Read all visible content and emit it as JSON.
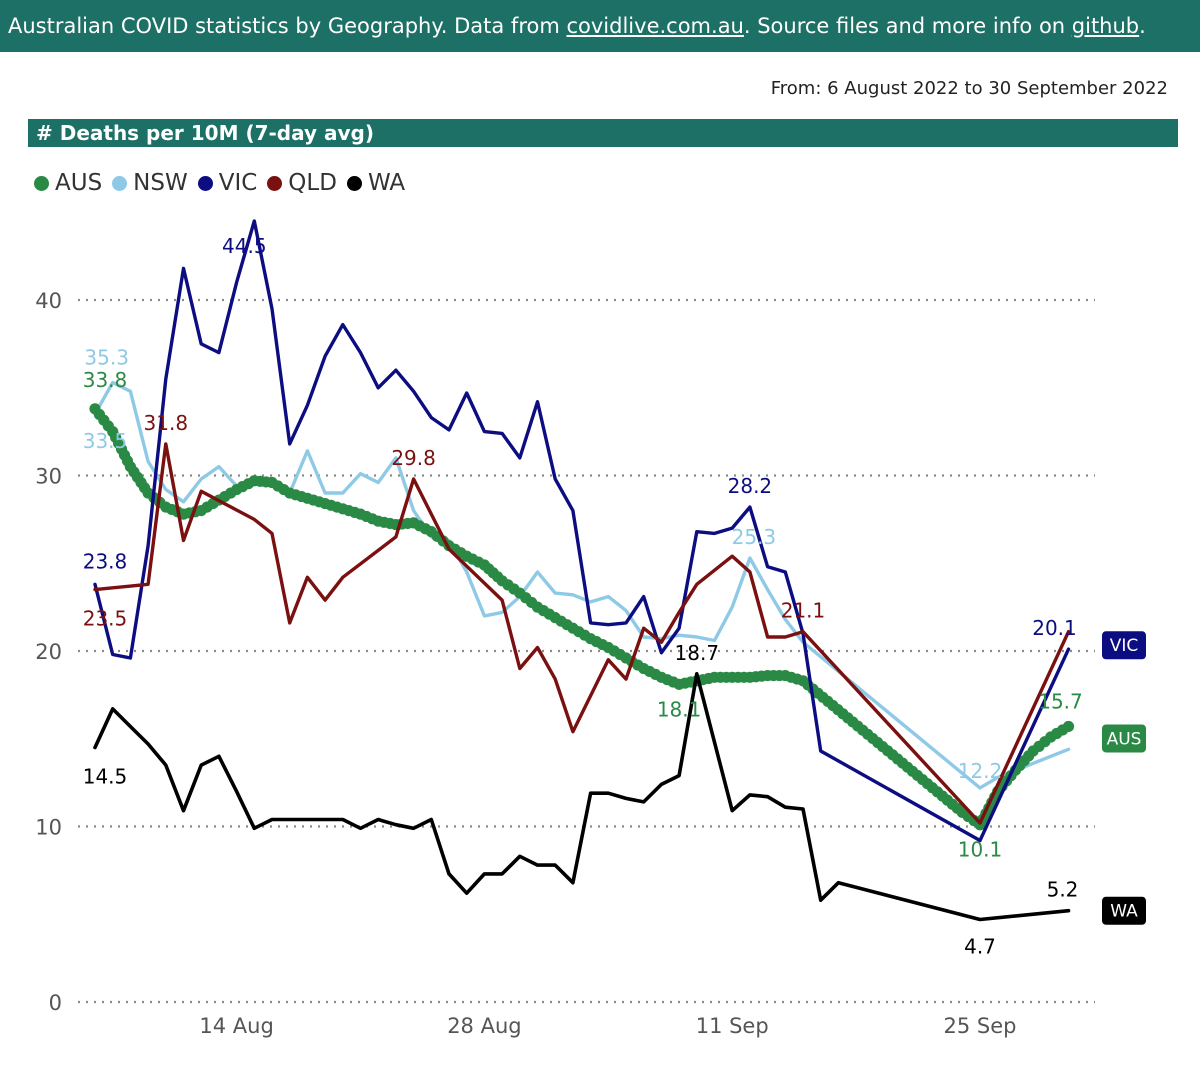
{
  "header": {
    "text_before": "Australian COVID statistics by Geography. Data from ",
    "link1": "covidlive.com.au",
    "text_middle": ". Source files and more info on ",
    "link2": "github",
    "text_after": "."
  },
  "date_range": "From: 6 August 2022 to 30 September 2022",
  "chart_data": {
    "type": "line",
    "title": "# Deaths per 10M (7-day avg)",
    "xlabel": "",
    "ylabel": "",
    "ylim": [
      0,
      46
    ],
    "yticks": [
      0,
      10,
      20,
      30,
      40
    ],
    "xticks": [
      {
        "day": 8,
        "label": "14 Aug"
      },
      {
        "day": 22,
        "label": "28 Aug"
      },
      {
        "day": 36,
        "label": "11 Sep"
      },
      {
        "day": 50,
        "label": "25 Sep"
      }
    ],
    "grid": "horizontal-dotted",
    "legend": "top-left",
    "series": [
      {
        "name": "AUS",
        "color": "#2a8a45",
        "style": "dots",
        "points": [
          [
            0,
            33.8
          ],
          [
            1,
            32.5
          ],
          [
            2,
            30.5
          ],
          [
            3,
            29.0
          ],
          [
            4,
            28.2
          ],
          [
            5,
            27.8
          ],
          [
            6,
            28.0
          ],
          [
            7,
            28.6
          ],
          [
            8,
            29.2
          ],
          [
            9,
            29.7
          ],
          [
            10,
            29.6
          ],
          [
            11,
            29.0
          ],
          [
            12,
            28.7
          ],
          [
            13,
            28.4
          ],
          [
            14,
            28.1
          ],
          [
            15,
            27.8
          ],
          [
            16,
            27.4
          ],
          [
            17,
            27.2
          ],
          [
            18,
            27.3
          ],
          [
            19,
            26.8
          ],
          [
            20,
            26.0
          ],
          [
            21,
            25.4
          ],
          [
            22,
            24.9
          ],
          [
            23,
            24.0
          ],
          [
            24,
            23.3
          ],
          [
            25,
            22.5
          ],
          [
            26,
            21.9
          ],
          [
            27,
            21.3
          ],
          [
            28,
            20.7
          ],
          [
            29,
            20.2
          ],
          [
            30,
            19.6
          ],
          [
            31,
            19.0
          ],
          [
            32,
            18.5
          ],
          [
            33,
            18.1
          ],
          [
            34,
            18.3
          ],
          [
            35,
            18.5
          ],
          [
            36,
            18.5
          ],
          [
            37,
            18.5
          ],
          [
            38,
            18.6
          ],
          [
            39,
            18.6
          ],
          [
            40,
            18.3
          ],
          [
            49,
            10.8
          ],
          [
            50,
            10.1
          ],
          [
            51,
            12.0
          ],
          [
            52,
            13.2
          ],
          [
            53,
            14.3
          ],
          [
            54,
            15.1
          ],
          [
            55,
            15.7
          ]
        ],
        "labels": [
          {
            "day": 0,
            "value": "33.8",
            "dx": 10,
            "dy": -22
          },
          {
            "day": 33,
            "value": "18.1",
            "dx": 0,
            "dy": 32
          },
          {
            "day": 50,
            "value": "10.1",
            "dx": 0,
            "dy": 32
          },
          {
            "day": 55,
            "value": "15.7",
            "dx": -8,
            "dy": -18
          }
        ],
        "end_badge": "AUS"
      },
      {
        "name": "NSW",
        "color": "#8ecae6",
        "style": "line",
        "points": [
          [
            0,
            33.5
          ],
          [
            1,
            35.3
          ],
          [
            2,
            34.8
          ],
          [
            3,
            30.8
          ],
          [
            4,
            29.2
          ],
          [
            5,
            28.5
          ],
          [
            6,
            29.8
          ],
          [
            7,
            30.5
          ],
          [
            8,
            29.4
          ],
          [
            9,
            29.8
          ],
          [
            10,
            29.6
          ],
          [
            11,
            29.0
          ],
          [
            12,
            31.4
          ],
          [
            13,
            29.0
          ],
          [
            14,
            29.0
          ],
          [
            15,
            30.1
          ],
          [
            16,
            29.6
          ],
          [
            17,
            31.0
          ],
          [
            18,
            28.0
          ],
          [
            19,
            26.5
          ],
          [
            20,
            26.3
          ],
          [
            21,
            24.5
          ],
          [
            22,
            22.0
          ],
          [
            23,
            22.2
          ],
          [
            24,
            23.1
          ],
          [
            25,
            24.5
          ],
          [
            26,
            23.3
          ],
          [
            27,
            23.2
          ],
          [
            28,
            22.8
          ],
          [
            29,
            23.1
          ],
          [
            30,
            22.3
          ],
          [
            31,
            20.8
          ],
          [
            32,
            20.7
          ],
          [
            33,
            20.9
          ],
          [
            34,
            20.8
          ],
          [
            35,
            20.6
          ],
          [
            36,
            22.5
          ],
          [
            37,
            25.3
          ],
          [
            38,
            23.5
          ],
          [
            39,
            21.8
          ],
          [
            40,
            20.5
          ],
          [
            50,
            12.2
          ],
          [
            51,
            12.8
          ],
          [
            55,
            14.4
          ]
        ],
        "labels": [
          {
            "day": 1,
            "value": "35.3",
            "dx": -6,
            "dy": -18
          },
          {
            "day": 0,
            "value": "33.5",
            "dx": 10,
            "dy": 34
          },
          {
            "day": 37,
            "value": "25.3",
            "dx": 4,
            "dy": -14
          },
          {
            "day": 50,
            "value": "12.2",
            "dx": 0,
            "dy": -10
          }
        ]
      },
      {
        "name": "VIC",
        "color": "#0d0d82",
        "style": "line",
        "points": [
          [
            0,
            23.8
          ],
          [
            1,
            19.8
          ],
          [
            2,
            19.6
          ],
          [
            3,
            26.0
          ],
          [
            4,
            35.5
          ],
          [
            5,
            41.8
          ],
          [
            6,
            37.5
          ],
          [
            7,
            37.0
          ],
          [
            8,
            41.0
          ],
          [
            9,
            44.5
          ],
          [
            10,
            39.5
          ],
          [
            11,
            31.8
          ],
          [
            12,
            34.0
          ],
          [
            13,
            36.8
          ],
          [
            14,
            38.6
          ],
          [
            15,
            37.0
          ],
          [
            16,
            35.0
          ],
          [
            17,
            36.0
          ],
          [
            18,
            34.8
          ],
          [
            19,
            33.3
          ],
          [
            20,
            32.6
          ],
          [
            21,
            34.7
          ],
          [
            22,
            32.5
          ],
          [
            23,
            32.4
          ],
          [
            24,
            31.0
          ],
          [
            25,
            34.2
          ],
          [
            26,
            29.8
          ],
          [
            27,
            28.0
          ],
          [
            28,
            21.6
          ],
          [
            29,
            21.5
          ],
          [
            30,
            21.6
          ],
          [
            31,
            23.1
          ],
          [
            32,
            19.9
          ],
          [
            33,
            21.3
          ],
          [
            34,
            26.8
          ],
          [
            35,
            26.7
          ],
          [
            36,
            27.0
          ],
          [
            37,
            28.2
          ],
          [
            38,
            24.8
          ],
          [
            39,
            24.5
          ],
          [
            40,
            21.0
          ],
          [
            41,
            14.3
          ],
          [
            50,
            9.2
          ],
          [
            55,
            20.1
          ]
        ],
        "labels": [
          {
            "day": 0,
            "value": "23.8",
            "dx": 10,
            "dy": -16
          },
          {
            "day": 9,
            "value": "44.5",
            "dx": -10,
            "dy": 32
          },
          {
            "day": 37,
            "value": "28.2",
            "dx": 0,
            "dy": -14
          },
          {
            "day": 55,
            "value": "20.1",
            "dx": -14,
            "dy": -14
          }
        ],
        "end_badge": "VIC"
      },
      {
        "name": "QLD",
        "color": "#7a1010",
        "style": "line",
        "points": [
          [
            0,
            23.5
          ],
          [
            3,
            23.8
          ],
          [
            4,
            31.8
          ],
          [
            5,
            26.3
          ],
          [
            6,
            29.1
          ],
          [
            9,
            27.5
          ],
          [
            10,
            26.7
          ],
          [
            11,
            21.6
          ],
          [
            12,
            24.2
          ],
          [
            13,
            22.9
          ],
          [
            14,
            24.2
          ],
          [
            17,
            26.5
          ],
          [
            18,
            29.8
          ],
          [
            19,
            27.8
          ],
          [
            20,
            25.8
          ],
          [
            23,
            22.9
          ],
          [
            24,
            19.0
          ],
          [
            25,
            20.2
          ],
          [
            26,
            18.4
          ],
          [
            27,
            15.4
          ],
          [
            29,
            19.5
          ],
          [
            30,
            18.4
          ],
          [
            31,
            21.3
          ],
          [
            32,
            20.5
          ],
          [
            33,
            22.2
          ],
          [
            34,
            23.8
          ],
          [
            36,
            25.4
          ],
          [
            37,
            24.5
          ],
          [
            38,
            20.8
          ],
          [
            39,
            20.8
          ],
          [
            40,
            21.1
          ],
          [
            50,
            10.2
          ],
          [
            55,
            21.1
          ]
        ],
        "labels": [
          {
            "day": 4,
            "value": "31.8",
            "dx": 0,
            "dy": -14
          },
          {
            "day": 0,
            "value": "23.5",
            "dx": 10,
            "dy": 36
          },
          {
            "day": 18,
            "value": "29.8",
            "dx": 0,
            "dy": -14
          },
          {
            "day": 40,
            "value": "21.1",
            "dx": 0,
            "dy": -14
          }
        ]
      },
      {
        "name": "WA",
        "color": "#000000",
        "style": "line",
        "points": [
          [
            0,
            14.5
          ],
          [
            1,
            16.7
          ],
          [
            2,
            15.7
          ],
          [
            3,
            14.7
          ],
          [
            4,
            13.5
          ],
          [
            5,
            10.9
          ],
          [
            6,
            13.5
          ],
          [
            7,
            14.0
          ],
          [
            8,
            12.0
          ],
          [
            9,
            9.9
          ],
          [
            10,
            10.4
          ],
          [
            11,
            10.4
          ],
          [
            12,
            10.4
          ],
          [
            13,
            10.4
          ],
          [
            14,
            10.4
          ],
          [
            15,
            9.9
          ],
          [
            16,
            10.4
          ],
          [
            17,
            10.1
          ],
          [
            18,
            9.9
          ],
          [
            19,
            10.4
          ],
          [
            20,
            7.3
          ],
          [
            21,
            6.2
          ],
          [
            22,
            7.3
          ],
          [
            23,
            7.3
          ],
          [
            24,
            8.3
          ],
          [
            25,
            7.8
          ],
          [
            26,
            7.8
          ],
          [
            27,
            6.8
          ],
          [
            28,
            11.9
          ],
          [
            29,
            11.9
          ],
          [
            30,
            11.6
          ],
          [
            31,
            11.4
          ],
          [
            32,
            12.4
          ],
          [
            33,
            12.9
          ],
          [
            34,
            18.7
          ],
          [
            36,
            10.9
          ],
          [
            37,
            11.8
          ],
          [
            38,
            11.7
          ],
          [
            39,
            11.1
          ],
          [
            40,
            11.0
          ],
          [
            41,
            5.8
          ],
          [
            42,
            6.8
          ],
          [
            50,
            4.7
          ],
          [
            55,
            5.2
          ]
        ],
        "labels": [
          {
            "day": 0,
            "value": "14.5",
            "dx": 10,
            "dy": 36
          },
          {
            "day": 34,
            "value": "18.7",
            "dx": 0,
            "dy": -14
          },
          {
            "day": 50,
            "value": "4.7",
            "dx": 0,
            "dy": 34
          },
          {
            "day": 55,
            "value": "5.2",
            "dx": -6,
            "dy": -14
          }
        ],
        "end_badge": "WA"
      }
    ]
  }
}
